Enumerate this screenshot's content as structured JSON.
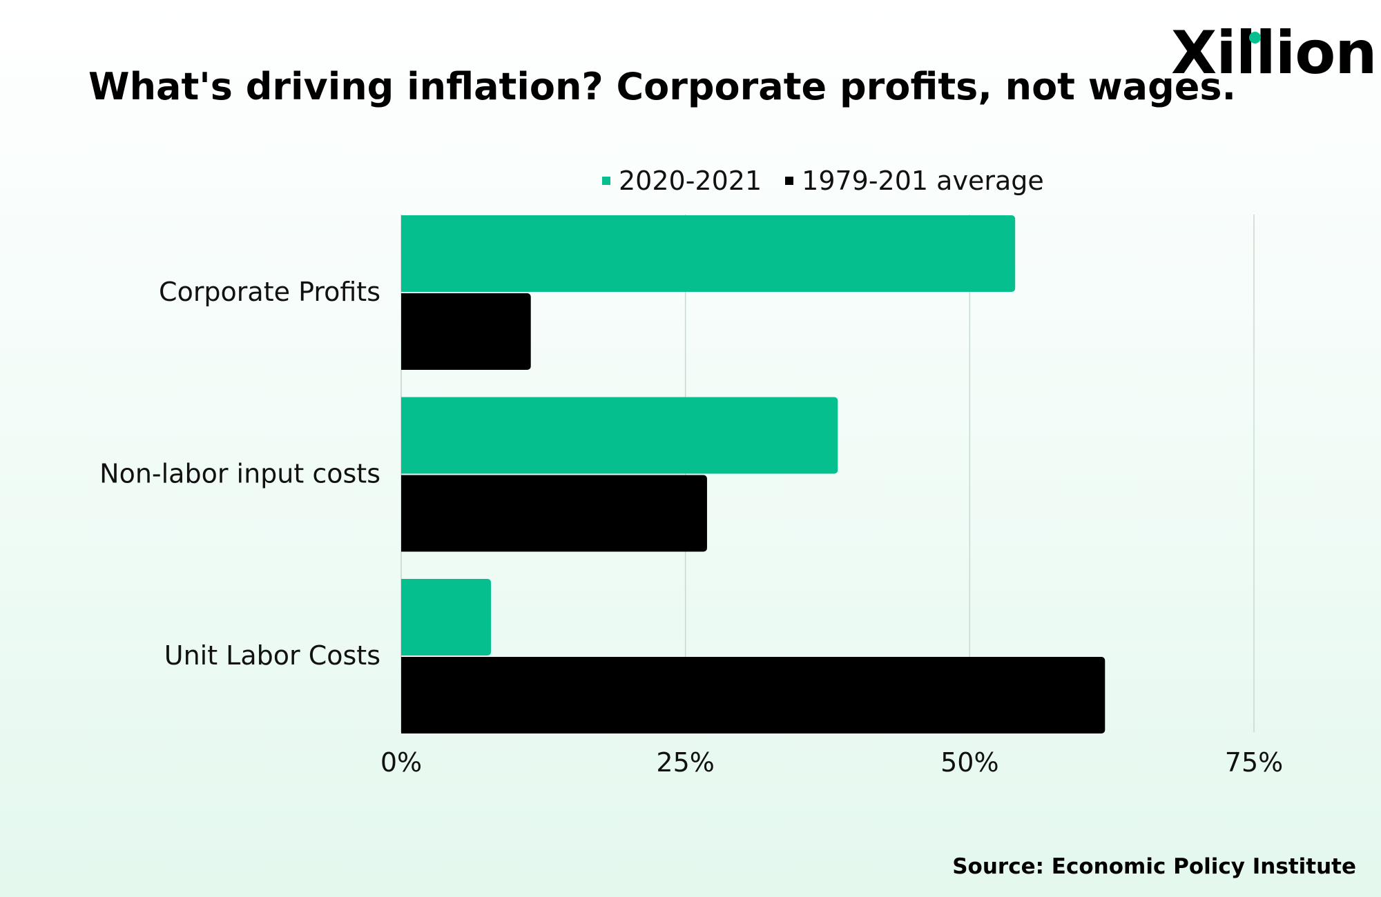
{
  "brand": {
    "logo_text": "Xillion"
  },
  "colors": {
    "series_current": "#05c08e",
    "series_average": "#000000",
    "gridline": "#c9d9d2"
  },
  "source": "Source: Economic Policy Institute",
  "chart_data": {
    "type": "bar",
    "orientation": "horizontal",
    "title": "What's driving inflation? Corporate profits, not wages.",
    "xlabel": "",
    "ylabel": "",
    "categories": [
      "Corporate Profits",
      "Non-labor input costs",
      "Unit Labor Costs"
    ],
    "series": [
      {
        "name": "2020-2021",
        "color": "#05c08e",
        "values": [
          54,
          38.4,
          7.9
        ]
      },
      {
        "name": "1979-201 average",
        "color": "#000000",
        "values": [
          11.4,
          26.9,
          61.9
        ]
      }
    ],
    "xlim": [
      0,
      75
    ],
    "x_ticks": [
      0,
      25,
      50,
      75
    ],
    "x_tick_labels": [
      "0%",
      "25%",
      "50%",
      "75%"
    ],
    "grid": true,
    "legend_position": "top"
  }
}
